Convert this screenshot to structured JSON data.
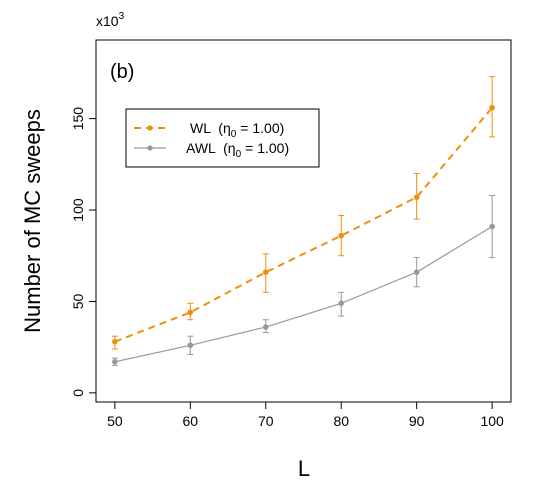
{
  "chart_data": {
    "type": "line",
    "panel_label": "(b)",
    "xlabel": "L",
    "ylabel": "Number of MC sweeps",
    "y_multiplier": {
      "base": "x10",
      "exponent": "3"
    },
    "xlim": [
      47.5,
      102.5
    ],
    "ylim": [
      -5,
      193
    ],
    "x_ticks": [
      50,
      60,
      70,
      80,
      90,
      100
    ],
    "y_ticks": [
      0,
      50,
      100,
      150
    ],
    "x": [
      50,
      60,
      70,
      80,
      90,
      100
    ],
    "series": [
      {
        "name": "WL",
        "legend_suffix": "= 1.00)",
        "legend_param": "η",
        "legend_param_sub": "0",
        "color": "#f0900a",
        "style": "dashed",
        "values": [
          28,
          44,
          66,
          86,
          107,
          156
        ],
        "err_low": [
          24,
          40,
          55,
          75,
          95,
          140
        ],
        "err_high": [
          31,
          49,
          76,
          97,
          120,
          173
        ]
      },
      {
        "name": "AWL",
        "legend_suffix": "= 1.00)",
        "legend_param": "η",
        "legend_param_sub": "0",
        "color": "#999999",
        "style": "solid",
        "values": [
          17,
          26,
          36,
          49,
          66,
          91
        ],
        "err_low": [
          15,
          21,
          33,
          42,
          58,
          74
        ],
        "err_high": [
          19,
          31,
          40,
          55,
          74,
          108
        ]
      }
    ],
    "legend_position": "upper-left",
    "grid": false
  }
}
